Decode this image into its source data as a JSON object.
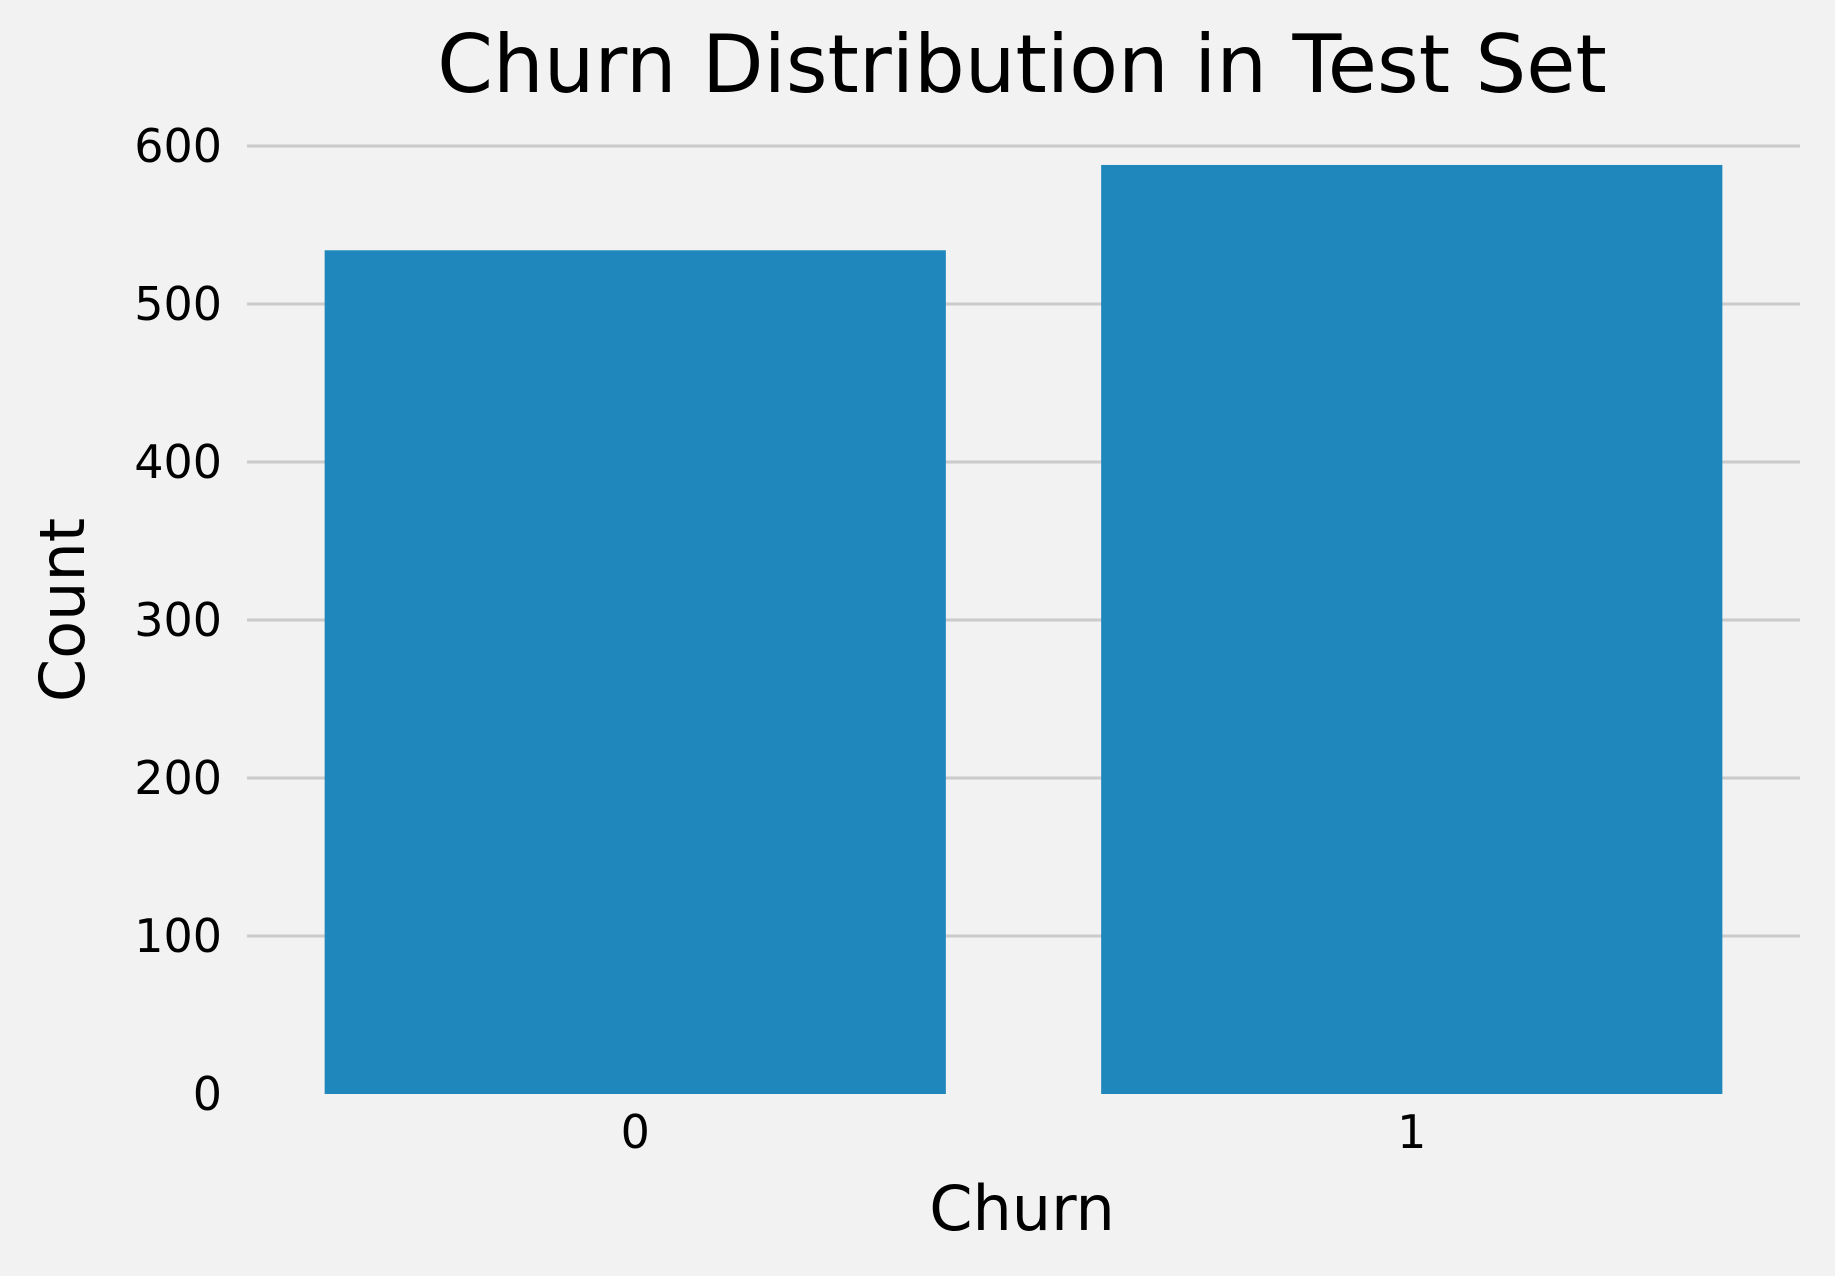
{
  "chart_data": {
    "type": "bar",
    "title": "Churn Distribution in Test Set",
    "xlabel": "Churn",
    "ylabel": "Count",
    "categories": [
      "0",
      "1"
    ],
    "values": [
      534,
      588
    ],
    "ylim": [
      0,
      600
    ],
    "yticks": [
      0,
      100,
      200,
      300,
      400,
      500,
      600
    ],
    "grid": true,
    "grid_axis": "y",
    "bar_color": "#1f87bb",
    "background_color": "#f2f2f2",
    "grid_color": "#cbcbcb"
  }
}
